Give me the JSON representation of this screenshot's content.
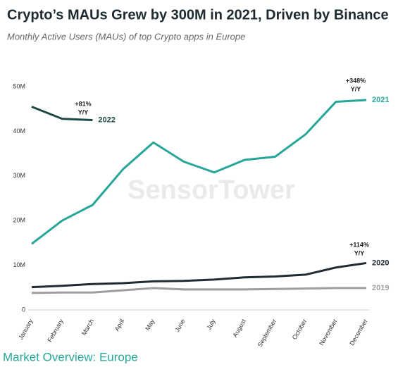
{
  "chart_data": {
    "type": "line",
    "title": "Crypto’s MAUs Grew by 300M in 2021, Driven by Binance",
    "subtitle": "Monthly Active Users (MAUs) of top Crypto apps in Europe",
    "categories": [
      "January",
      "February",
      "March",
      "April",
      "May",
      "June",
      "July",
      "August",
      "September",
      "October",
      "November",
      "December"
    ],
    "series": [
      {
        "name": "2022",
        "color": "#1f4a44",
        "values": [
          45.5,
          42.8,
          42.5,
          null,
          null,
          null,
          null,
          null,
          null,
          null,
          null,
          null
        ]
      },
      {
        "name": "2021",
        "color": "#26a699",
        "values": [
          14.8,
          20.0,
          23.5,
          31.5,
          37.5,
          33.2,
          30.8,
          33.6,
          34.3,
          39.3,
          46.6,
          47.0
        ]
      },
      {
        "name": "2020",
        "color": "#222b33",
        "values": [
          5.1,
          5.4,
          5.8,
          6.0,
          6.4,
          6.5,
          6.8,
          7.3,
          7.5,
          7.9,
          9.5,
          10.5
        ]
      },
      {
        "name": "2019",
        "color": "#9e9e9e",
        "values": [
          3.8,
          3.9,
          3.9,
          4.4,
          4.9,
          4.6,
          4.6,
          4.6,
          4.7,
          4.8,
          4.9,
          4.9
        ]
      }
    ],
    "ylim": [
      0,
      50
    ],
    "yticks": [
      0,
      {
        "value": 10,
        "label": "10M"
      },
      {
        "value": 20,
        "label": "20M"
      },
      {
        "value": 30,
        "label": "30M"
      },
      {
        "value": 40,
        "label": "40M"
      },
      {
        "value": 50,
        "label": "50M"
      }
    ],
    "annotations": [
      {
        "lines": [
          "+81%",
          "Y/Y"
        ]
      },
      {
        "lines": [
          "+348%",
          "Y/Y"
        ]
      },
      {
        "lines": [
          "+114%",
          "Y/Y"
        ]
      }
    ],
    "watermark": "SensorTower",
    "footer": "Market Overview: Europe"
  }
}
